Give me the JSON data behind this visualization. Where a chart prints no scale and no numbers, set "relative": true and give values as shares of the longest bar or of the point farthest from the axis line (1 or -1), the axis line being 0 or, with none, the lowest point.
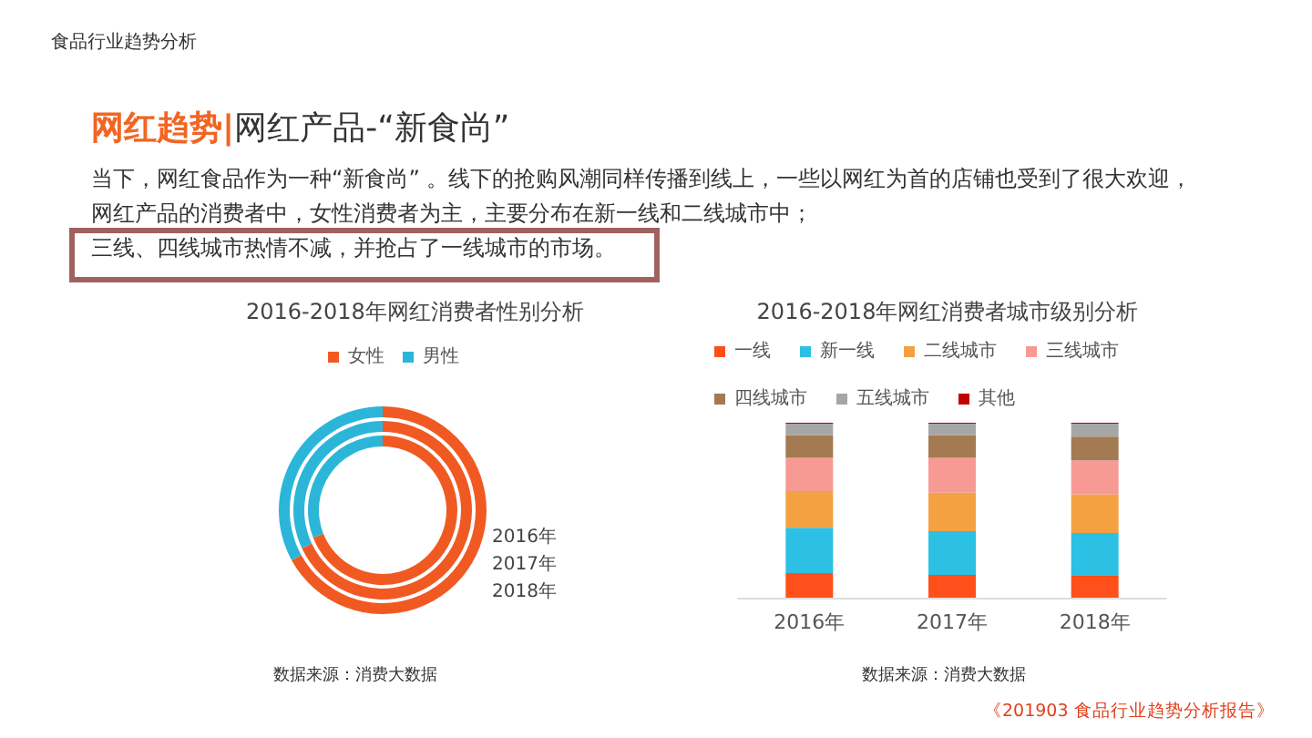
{
  "chart_data": [
    {
      "type": "donut",
      "title": "2016-2018年网红消费者性别分析",
      "categories": [
        "女性",
        "男性"
      ],
      "colors": [
        "#f05a22",
        "#2bb6d9"
      ],
      "legend": "top",
      "series": [
        {
          "name": "2016年",
          "values": [
            67,
            33
          ]
        },
        {
          "name": "2017年",
          "values": [
            68,
            32
          ]
        },
        {
          "name": "2018年",
          "values": [
            69,
            31
          ]
        }
      ],
      "annotations": [
        "食品行业趋势分析",
        "网红趋势|",
        "网红产品-“新食尚”",
        "当下，网红食品作为一种“新食尚” 。线下的抢购风潮同样传播到线上，一些以网红为首的店铺也受到了很大欢迎，",
        "网红产品的消费者中，女性消费者为主，主要分布在新一线和二线城市中；",
        "三线、四线城市热情不减，并抢占了一线城市的市场。",
        "数据来源：消费大数据"
      ]
    },
    {
      "type": "bar",
      "title": "2016-2018年网红消费者城市级别分析",
      "categories": [
        "2016年",
        "2017年",
        "2018年"
      ],
      "stacked": true,
      "relative": true,
      "legend": "top",
      "series": [
        {
          "name": "一线",
          "color": "#ff4f1a",
          "values": [
            0.14,
            0.13,
            0.125
          ]
        },
        {
          "name": "新一线",
          "color": "#2bc0e4",
          "values": [
            0.26,
            0.25,
            0.245
          ]
        },
        {
          "name": "二线城市",
          "color": "#f4a142",
          "values": [
            0.21,
            0.22,
            0.22
          ]
        },
        {
          "name": "三线城市",
          "color": "#f89a94",
          "values": [
            0.19,
            0.2,
            0.195
          ]
        },
        {
          "name": "四线城市",
          "color": "#a37a52",
          "values": [
            0.13,
            0.13,
            0.135
          ]
        },
        {
          "name": "五线城市",
          "color": "#a6a6a6",
          "values": [
            0.065,
            0.065,
            0.075
          ]
        },
        {
          "name": "其他",
          "color": "#c00000",
          "values": [
            0.005,
            0.005,
            0.005
          ]
        }
      ],
      "annotations": [
        "数据来源：消费大数据",
        "《201903 食品行业趋势分析报告》"
      ]
    }
  ]
}
